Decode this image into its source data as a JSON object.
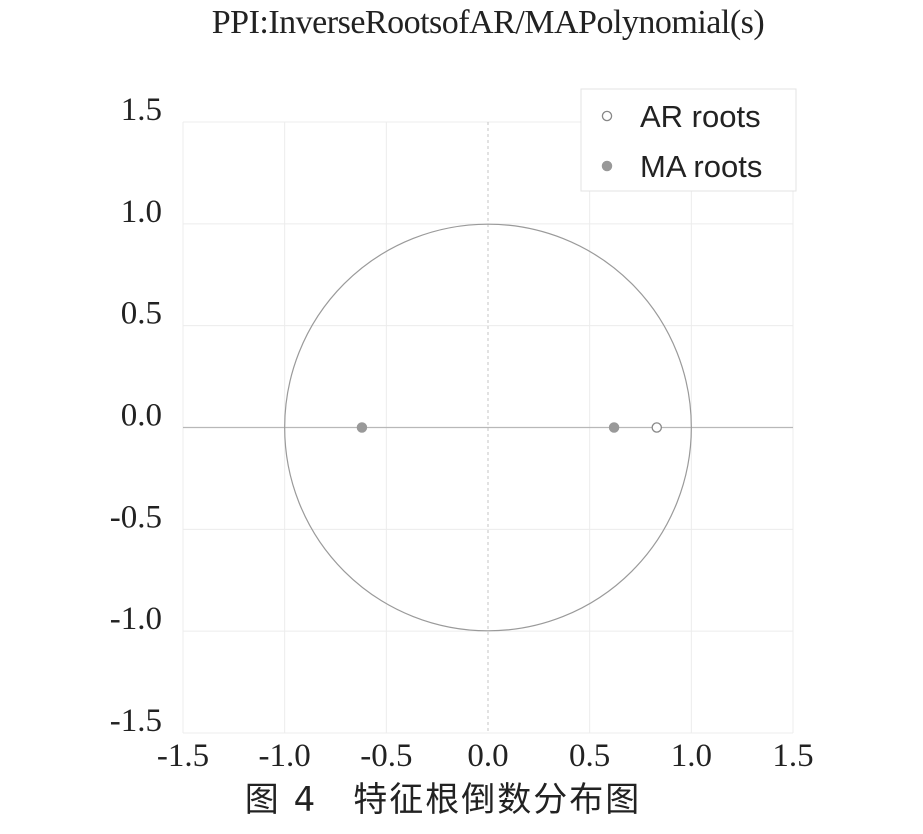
{
  "chart_data": {
    "type": "scatter",
    "title": "PPI:InverseRootsofAR/MAPolynomial(s)",
    "xlim": [
      -1.5,
      1.5
    ],
    "ylim": [
      -1.5,
      1.5
    ],
    "x_ticks": [
      "-1.5",
      "-1.0",
      "-0.5",
      "0.0",
      "0.5",
      "1.0",
      "1.5"
    ],
    "y_ticks": [
      "1.5",
      "1.0",
      "0.5",
      "0.0",
      "-0.5",
      "-1.0",
      "-1.5"
    ],
    "unit_circle": true,
    "grid": true,
    "legend_position": "top-right",
    "series": [
      {
        "name": "AR roots",
        "marker": "open-circle",
        "color": "#888888",
        "points": [
          {
            "x": 0.83,
            "y": 0.0
          }
        ]
      },
      {
        "name": "MA roots",
        "marker": "filled-circle",
        "color": "#999999",
        "points": [
          {
            "x": -0.62,
            "y": 0.0
          },
          {
            "x": 0.62,
            "y": 0.0
          }
        ]
      }
    ]
  },
  "caption": "图 4　特征根倒数分布图"
}
